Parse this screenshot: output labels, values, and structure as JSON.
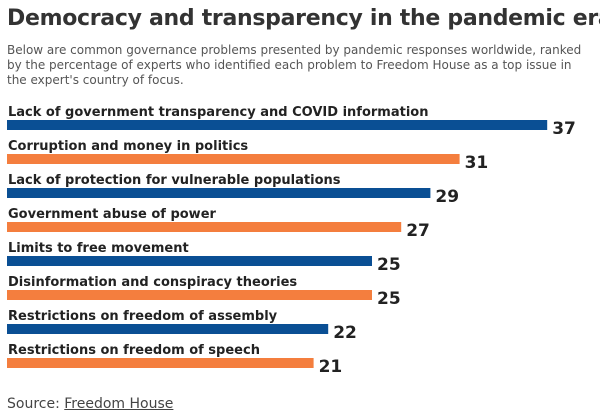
{
  "title": "Democracy and transparency in the pandemic era",
  "subtitle": "Below are common governance problems presented by pandemic responses worldwide, ranked by the percentage of experts who identified each problem to Freedom House as a top issue in the expert's country of focus.",
  "source": {
    "prefix": "Source: ",
    "link_text": "Freedom House"
  },
  "colors": {
    "blue": "#0a4f94",
    "orange": "#f47e3e"
  },
  "chart_data": {
    "type": "bar",
    "orientation": "horizontal",
    "categories": [
      "Lack of government transparency and COVID information",
      "Corruption and money in politics",
      "Lack of protection for vulnerable populations",
      "Government abuse of power",
      "Limits to free movement",
      "Disinformation and conspiracy theories",
      "Restrictions on freedom of assembly",
      "Restrictions on freedom of speech"
    ],
    "values": [
      37,
      31,
      29,
      27,
      25,
      25,
      22,
      21
    ],
    "value_labels": [
      "37",
      "31",
      "29",
      "27",
      "25",
      "25",
      "22",
      "21"
    ],
    "bar_colors": [
      "blue",
      "orange",
      "blue",
      "orange",
      "blue",
      "orange",
      "blue",
      "orange"
    ],
    "xlim": [
      0,
      40
    ],
    "grid": false,
    "legend": "none"
  }
}
